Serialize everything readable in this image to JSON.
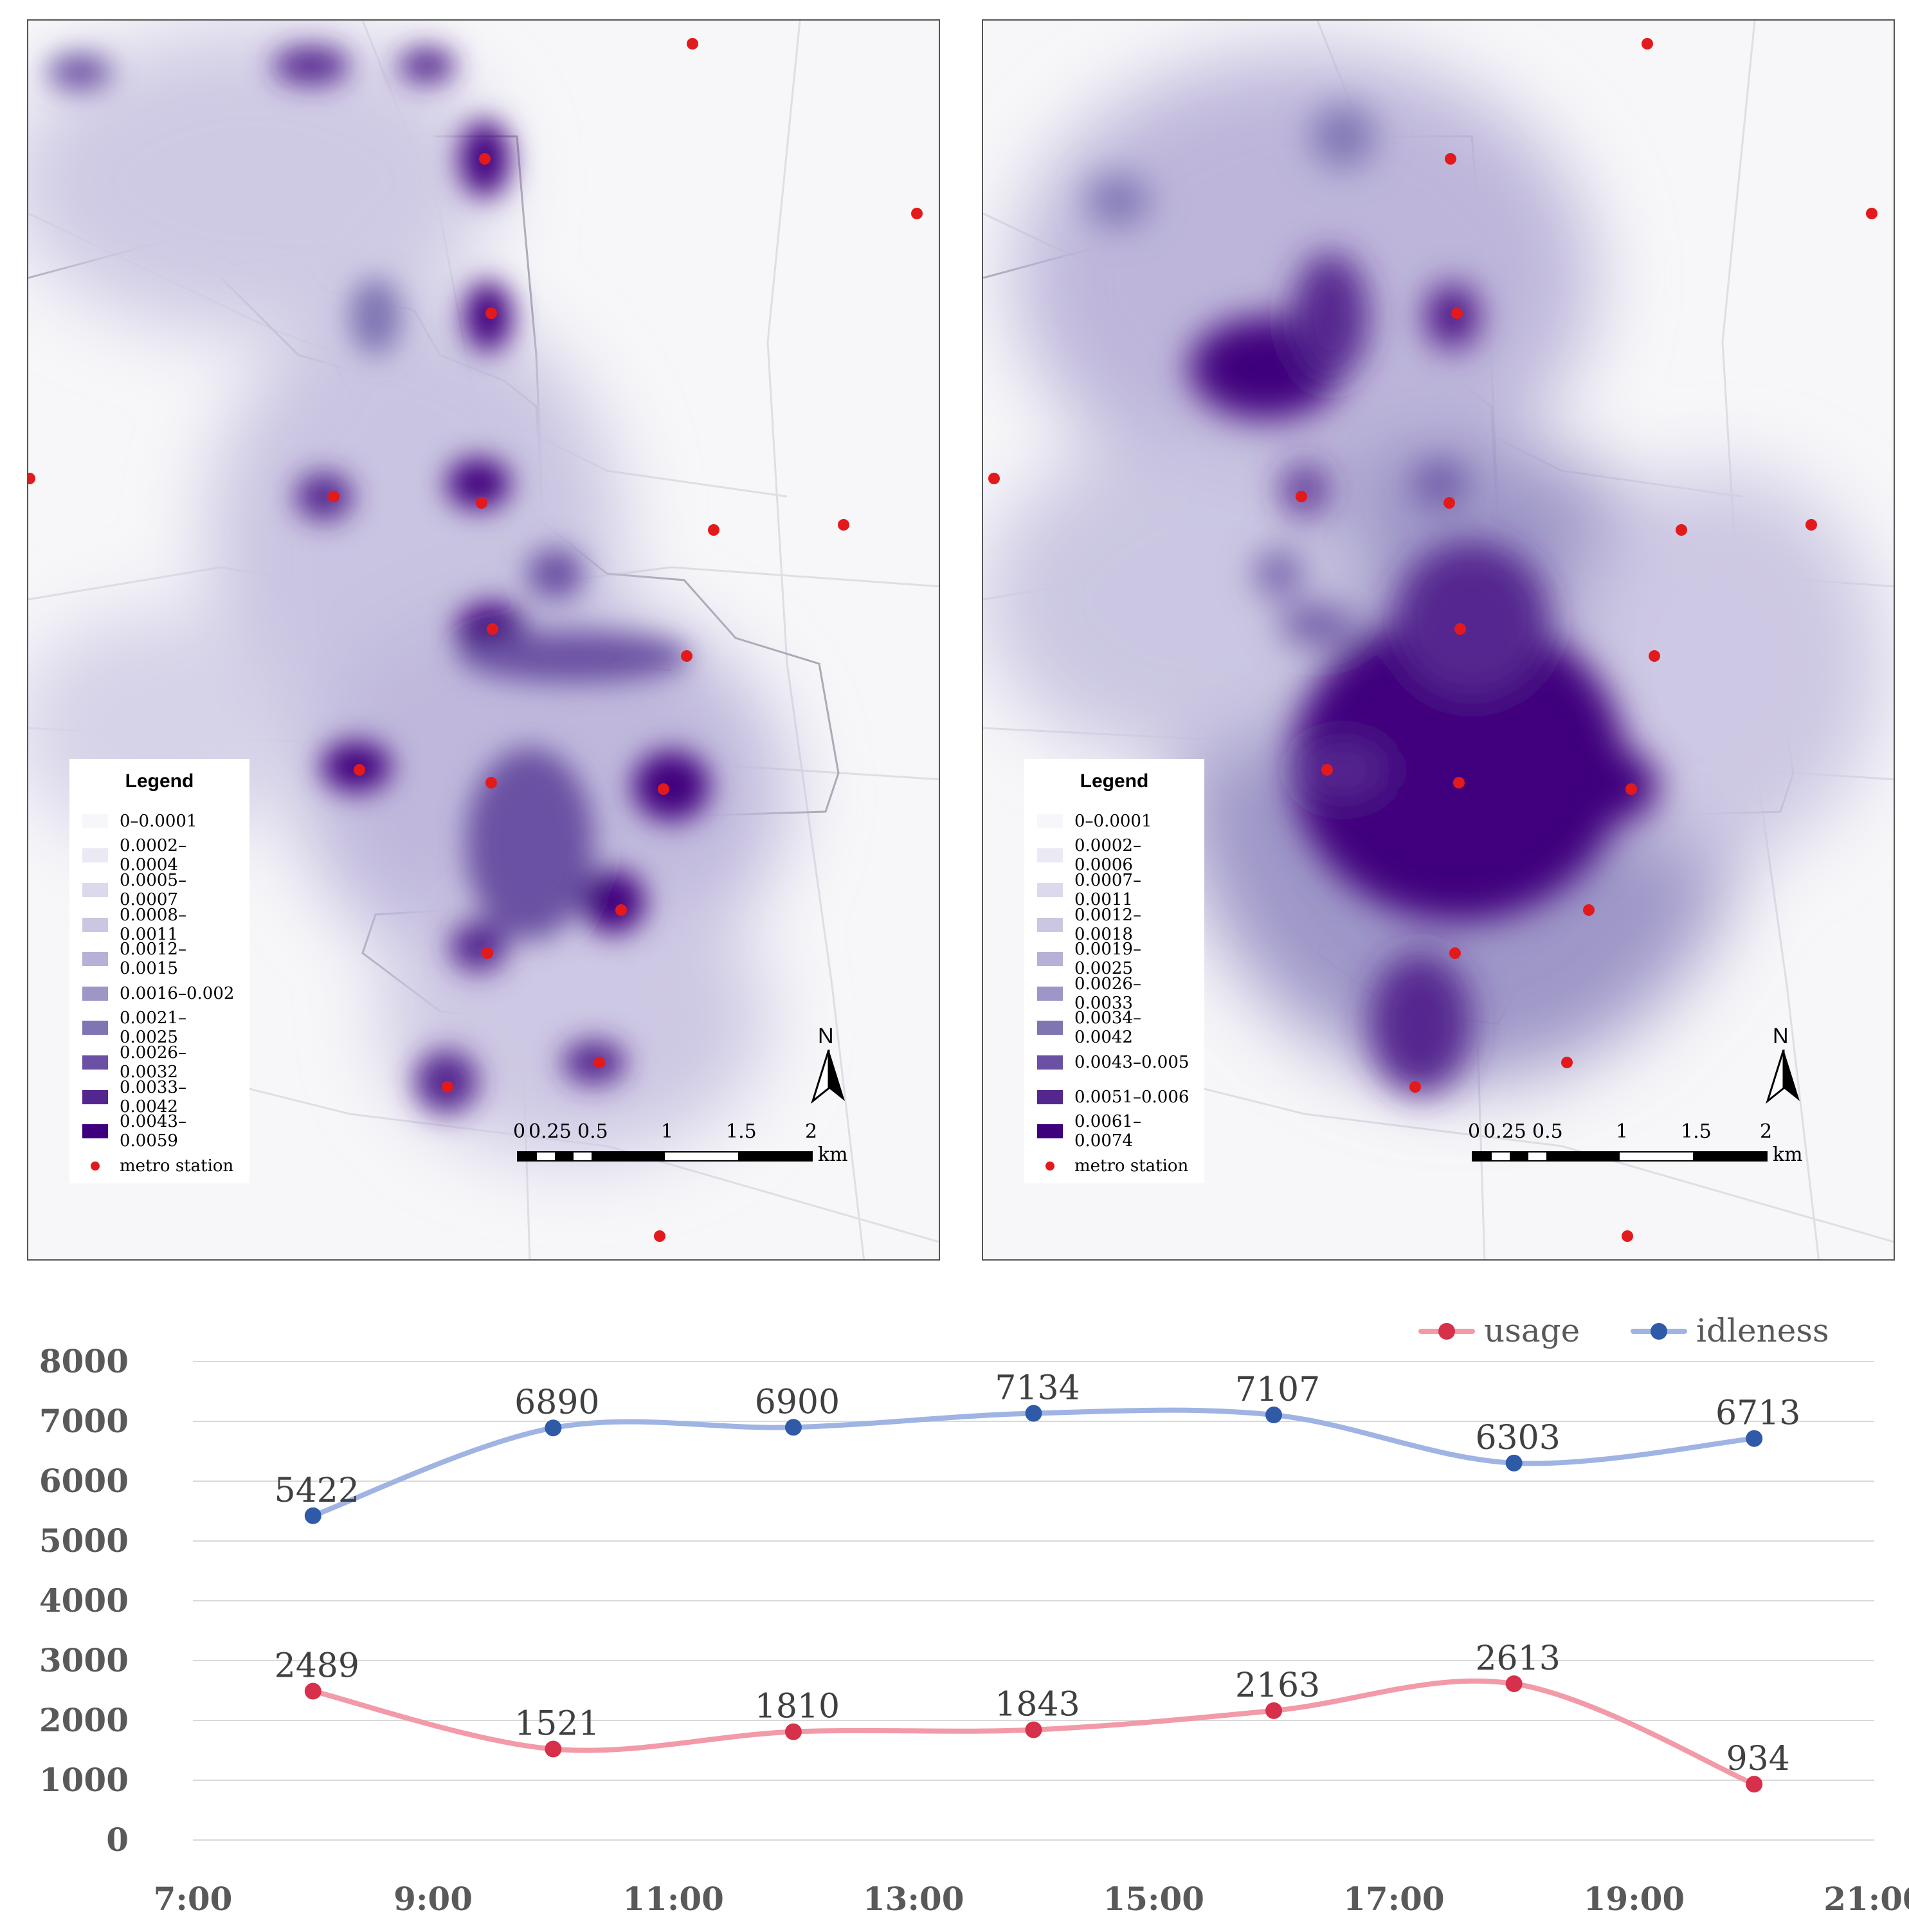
{
  "maps": {
    "left": {
      "legend_title": "Legend",
      "legend_items": [
        {
          "label": "0–0.0001",
          "color": "#f7f6fb"
        },
        {
          "label": "0.0002–0.0004",
          "color": "#ebe9f4"
        },
        {
          "label": "0.0005–0.0007",
          "color": "#dcd9ec"
        },
        {
          "label": "0.0008–0.0011",
          "color": "#cbc7e2"
        },
        {
          "label": "0.0012–0.0015",
          "color": "#b6b1d6"
        },
        {
          "label": "0.0016–0.002",
          "color": "#9d96c7"
        },
        {
          "label": "0.0021–0.0025",
          "color": "#7f75b3"
        },
        {
          "label": "0.0026–0.0032",
          "color": "#6a51a3"
        },
        {
          "label": "0.0033–0.0042",
          "color": "#54278f"
        },
        {
          "label": "0.0043–0.0059",
          "color": "#3f007d"
        }
      ],
      "station_label": "metro station"
    },
    "right": {
      "legend_title": "Legend",
      "legend_items": [
        {
          "label": "0–0.0001",
          "color": "#f7f6fb"
        },
        {
          "label": "0.0002–0.0006",
          "color": "#ebe9f4"
        },
        {
          "label": "0.0007–0.0011",
          "color": "#dcd9ec"
        },
        {
          "label": "0.0012–0.0018",
          "color": "#cbc7e2"
        },
        {
          "label": "0.0019–0.0025",
          "color": "#b6b1d6"
        },
        {
          "label": "0.0026–0.0033",
          "color": "#9d96c7"
        },
        {
          "label": "0.0034–0.0042",
          "color": "#7f75b3"
        },
        {
          "label": "0.0043–0.005",
          "color": "#6a51a3"
        },
        {
          "label": "0.0051–0.006",
          "color": "#54278f"
        },
        {
          "label": "0.0061–0.0074",
          "color": "#3f007d"
        }
      ],
      "station_label": "metro station"
    },
    "north_label": "N",
    "scale_ticks": [
      "0",
      "0.25",
      "0.5",
      "1",
      "1.5",
      "2"
    ],
    "scale_unit": "km",
    "station_color": "#e31a1c"
  },
  "chart_data": {
    "type": "line",
    "categories": [
      "8:00",
      "10:00",
      "12:00",
      "14:00",
      "16:00",
      "18:00",
      "20:00"
    ],
    "x_tick_labels": [
      "7:00",
      "9:00",
      "11:00",
      "13:00",
      "15:00",
      "17:00",
      "19:00",
      "21:00"
    ],
    "y_tick_labels": [
      "0",
      "1000",
      "2000",
      "3000",
      "4000",
      "5000",
      "6000",
      "7000",
      "8000"
    ],
    "ylim": [
      0,
      8000
    ],
    "series": [
      {
        "name": "usage",
        "values": [
          2489,
          1521,
          1810,
          1843,
          2163,
          2613,
          934
        ],
        "line_color": "#f29aa8",
        "marker_color": "#d6304a"
      },
      {
        "name": "idleness",
        "values": [
          5422,
          6890,
          6900,
          7134,
          7107,
          6303,
          6713
        ],
        "line_color": "#9fb4e2",
        "marker_color": "#2f5aa8"
      }
    ],
    "legend_position": "top-right",
    "grid": true
  }
}
